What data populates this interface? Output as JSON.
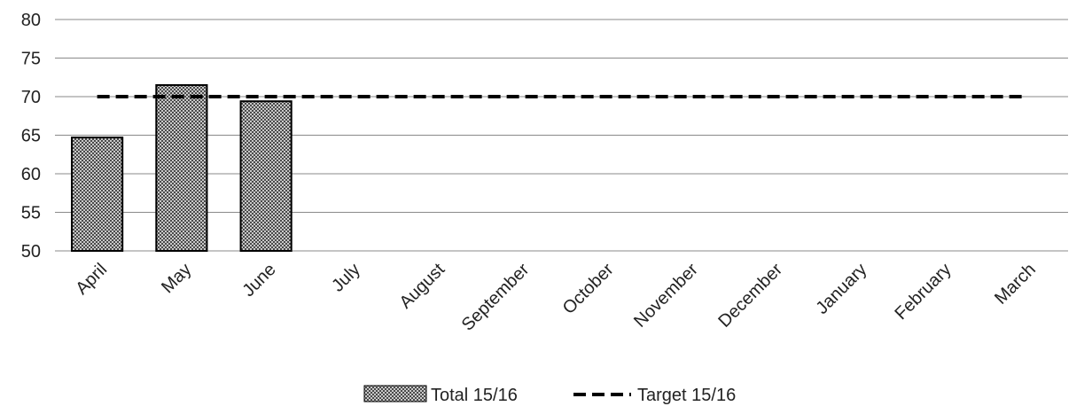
{
  "chart_data": {
    "type": "bar",
    "categories": [
      "April",
      "May",
      "June",
      "July",
      "August",
      "September",
      "October",
      "November",
      "December",
      "January",
      "February",
      "March"
    ],
    "series": [
      {
        "name": "Total 15/16",
        "type": "bar",
        "values": [
          64.7,
          71.5,
          69.4,
          null,
          null,
          null,
          null,
          null,
          null,
          null,
          null,
          null
        ]
      },
      {
        "name": "Target 15/16",
        "type": "line",
        "style": "dashed",
        "values": [
          70,
          70,
          70,
          70,
          70,
          70,
          70,
          70,
          70,
          70,
          70,
          70
        ]
      }
    ],
    "ylim": [
      50,
      80
    ],
    "yticks": [
      50,
      55,
      60,
      65,
      70,
      75,
      80
    ],
    "grid": true,
    "legend": "bottom",
    "colors": {
      "bar_fill": "#8c8c8c",
      "bar_stroke": "#000000",
      "target_line": "#000000",
      "grid": "#8a8a8a"
    }
  }
}
